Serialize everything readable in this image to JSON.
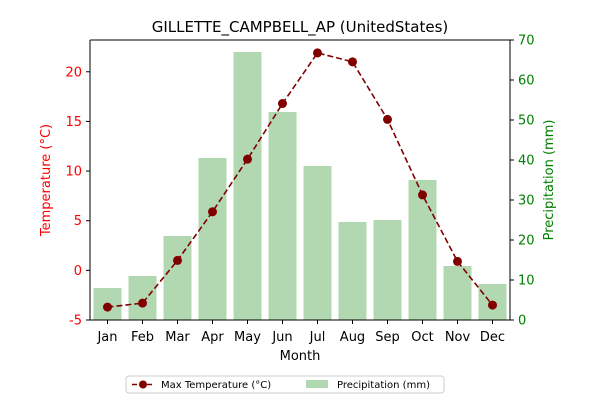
{
  "chart_data": {
    "type": "bar",
    "title": "GILLETTE_CAMPBELL_AP (UnitedStates)",
    "xlabel": "Month",
    "categories": [
      "Jan",
      "Feb",
      "Mar",
      "Apr",
      "May",
      "Jun",
      "Jul",
      "Aug",
      "Sep",
      "Oct",
      "Nov",
      "Dec"
    ],
    "left_axis": {
      "label": "Temperature (°C)",
      "ylim": [
        -5,
        23.2
      ],
      "ticks": [
        -5,
        0,
        5,
        10,
        15,
        20
      ],
      "color": "#ff0000"
    },
    "right_axis": {
      "label": "Precipitation (mm)",
      "ylim": [
        0,
        70
      ],
      "ticks": [
        0,
        10,
        20,
        30,
        40,
        50,
        60,
        70
      ],
      "color": "#008000"
    },
    "series": [
      {
        "name": "Max Temperature (°C)",
        "kind": "line",
        "axis": "left",
        "color": "#800000",
        "values": [
          -3.7,
          -3.3,
          1.0,
          5.9,
          11.2,
          16.8,
          21.9,
          21.0,
          15.2,
          7.6,
          0.9,
          -3.5
        ]
      },
      {
        "name": "Precipitation (mm)",
        "kind": "bar",
        "axis": "right",
        "color": "#b1d8b1",
        "values": [
          8.0,
          11.0,
          21.0,
          40.5,
          67.0,
          52.0,
          38.5,
          24.5,
          25.0,
          35.0,
          13.5,
          9.0
        ]
      }
    ],
    "grid": false,
    "legend_position": "bottom-center"
  }
}
